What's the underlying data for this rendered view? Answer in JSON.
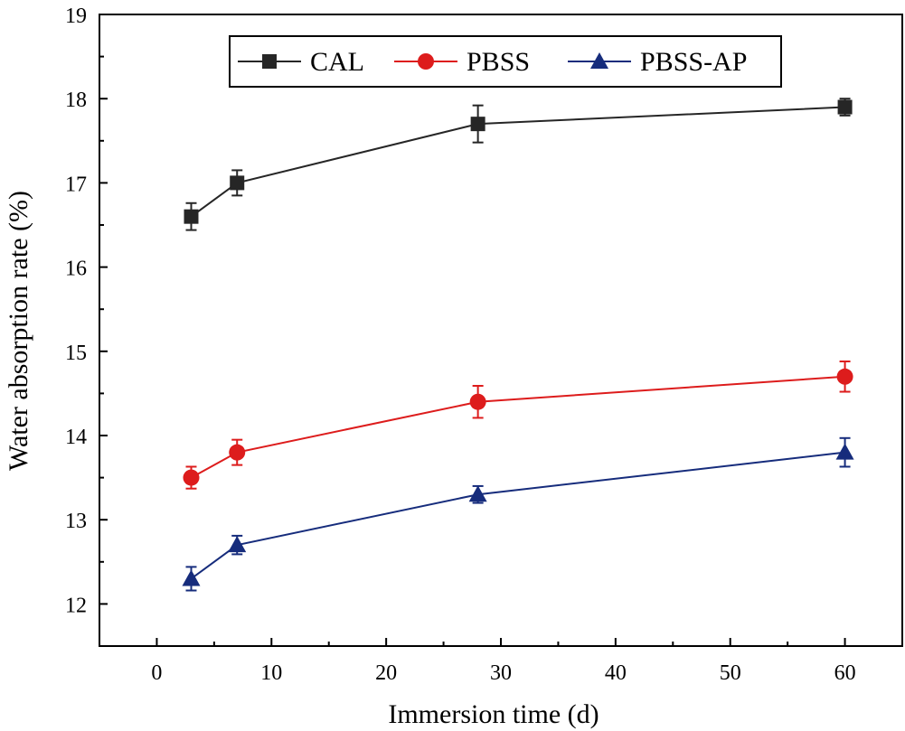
{
  "chart_data": {
    "type": "line",
    "title": "",
    "xlabel": "Immersion time (d)",
    "ylabel": "Water absorption rate (%)",
    "xlim": [
      -5,
      65
    ],
    "ylim": [
      11.5,
      19
    ],
    "x_ticks": [
      0,
      10,
      20,
      30,
      40,
      50,
      60
    ],
    "y_ticks": [
      12,
      13,
      14,
      15,
      16,
      17,
      18,
      19
    ],
    "grid": false,
    "legend_position": "top",
    "series": [
      {
        "name": "CAL",
        "color": "#262626",
        "marker": "square",
        "x": [
          3,
          7,
          28,
          60
        ],
        "y": [
          16.6,
          17.0,
          17.7,
          17.9
        ],
        "error": [
          0.16,
          0.15,
          0.22,
          0.1
        ]
      },
      {
        "name": "PBSS",
        "color": "#dd1c1c",
        "marker": "circle",
        "x": [
          3,
          7,
          28,
          60
        ],
        "y": [
          13.5,
          13.8,
          14.4,
          14.7
        ],
        "error": [
          0.13,
          0.15,
          0.19,
          0.18
        ]
      },
      {
        "name": "PBSS-AP",
        "color": "#162c7c",
        "marker": "triangle",
        "x": [
          3,
          7,
          28,
          60
        ],
        "y": [
          12.3,
          12.7,
          13.3,
          13.8
        ],
        "error": [
          0.14,
          0.11,
          0.1,
          0.17
        ]
      }
    ]
  }
}
